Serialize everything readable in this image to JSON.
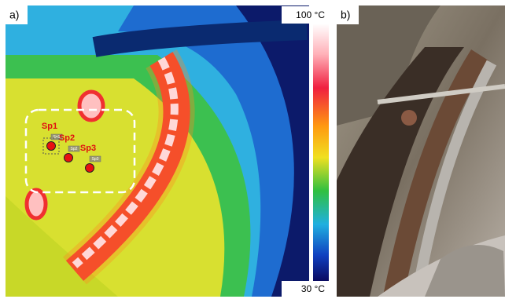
{
  "panels": [
    {
      "label": "a)",
      "colorbar": {
        "max_label": "100 °C",
        "min_label": "30 °C"
      },
      "spots": [
        {
          "name": "Sp1"
        },
        {
          "name": "Sp2"
        },
        {
          "name": "Sp3"
        }
      ]
    },
    {
      "label": "b)"
    }
  ]
}
